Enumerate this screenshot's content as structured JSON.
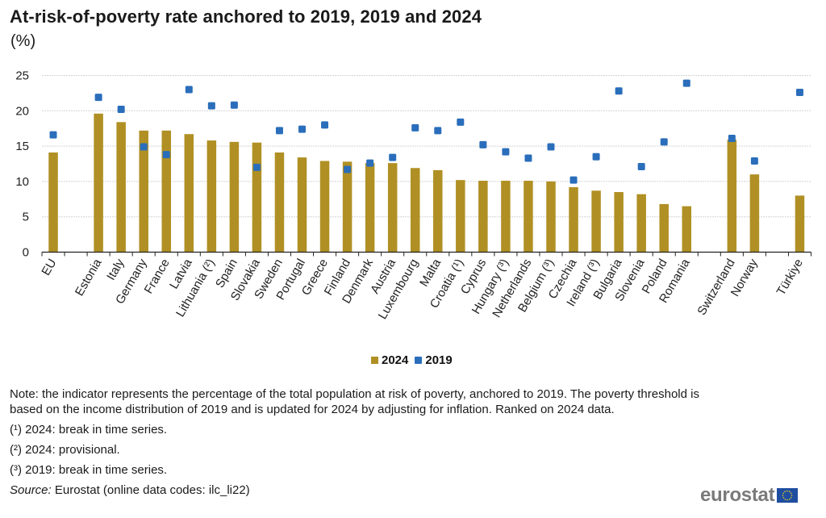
{
  "title": "At-risk-of-poverty rate anchored to 2019, 2019 and 2024",
  "subtitle": "(%)",
  "legend": {
    "items": [
      {
        "label": "2024",
        "color": "#b09024",
        "shape": "bar"
      },
      {
        "label": "2019",
        "color": "#2a6ebb",
        "shape": "square-marker"
      }
    ]
  },
  "notes": {
    "main": "Note: the indicator represents the percentage of the total population at risk of poverty, anchored to 2019. The poverty threshold is based on the income distribution of 2019 and is updated for 2024 by adjusting for inflation. Ranked on 2024 data.",
    "footnotes": [
      "(¹) 2024: break in time series.",
      "(²) 2024: provisional.",
      "(³) 2019: break in time series."
    ],
    "source_label": "Source:",
    "source_text": " Eurostat (online data codes: ilc_li22)"
  },
  "logo": {
    "text": "eurostat",
    "icon": "eu-flag-icon"
  },
  "chart_data": {
    "type": "bar",
    "title": "At-risk-of-poverty rate anchored to 2019, 2019 and 2024",
    "subtitle": "(%)",
    "xlabel": "",
    "ylabel": "%",
    "ylim": [
      0,
      25
    ],
    "yticks": [
      0,
      5,
      10,
      15,
      20,
      25
    ],
    "grid": true,
    "legend_position": "bottom-center",
    "categories": [
      "EU",
      "",
      "Estonia",
      "Italy",
      "Germany",
      "France",
      "Latvia",
      "Lithuania (²)",
      "Spain",
      "Slovakia",
      "Sweden",
      "Portugal",
      "Greece",
      "Finland",
      "Denmark",
      "Austria",
      "Luxembourg",
      "Malta",
      "Croatia (¹)",
      "Cyprus",
      "Hungary (³)",
      "Netherlands",
      "Belgium (³)",
      "Czechia",
      "Ireland (³)",
      "Bulgaria",
      "Slovenia",
      "Poland",
      "Romania",
      "",
      "Switzerland",
      "Norway",
      "",
      "Türkiye"
    ],
    "series": [
      {
        "name": "2024",
        "type": "bar",
        "color": "#b09024",
        "values": [
          14.1,
          null,
          19.6,
          18.4,
          17.2,
          17.2,
          16.7,
          15.8,
          15.6,
          15.5,
          14.1,
          13.4,
          12.9,
          12.8,
          12.6,
          12.6,
          11.9,
          11.6,
          10.2,
          10.1,
          10.1,
          10.1,
          10.0,
          9.2,
          8.7,
          8.5,
          8.2,
          6.8,
          6.5,
          null,
          15.9,
          11.0,
          null,
          8.0
        ]
      },
      {
        "name": "2019",
        "type": "marker",
        "color": "#2a6ebb",
        "values": [
          16.6,
          null,
          21.9,
          20.2,
          14.9,
          13.8,
          23.0,
          20.7,
          20.8,
          12.0,
          17.2,
          17.4,
          18.0,
          11.7,
          12.6,
          13.4,
          17.6,
          17.2,
          18.4,
          15.2,
          14.2,
          13.3,
          14.9,
          10.2,
          13.5,
          22.8,
          12.1,
          15.6,
          23.9,
          null,
          16.1,
          12.9,
          null,
          22.6
        ]
      }
    ]
  }
}
